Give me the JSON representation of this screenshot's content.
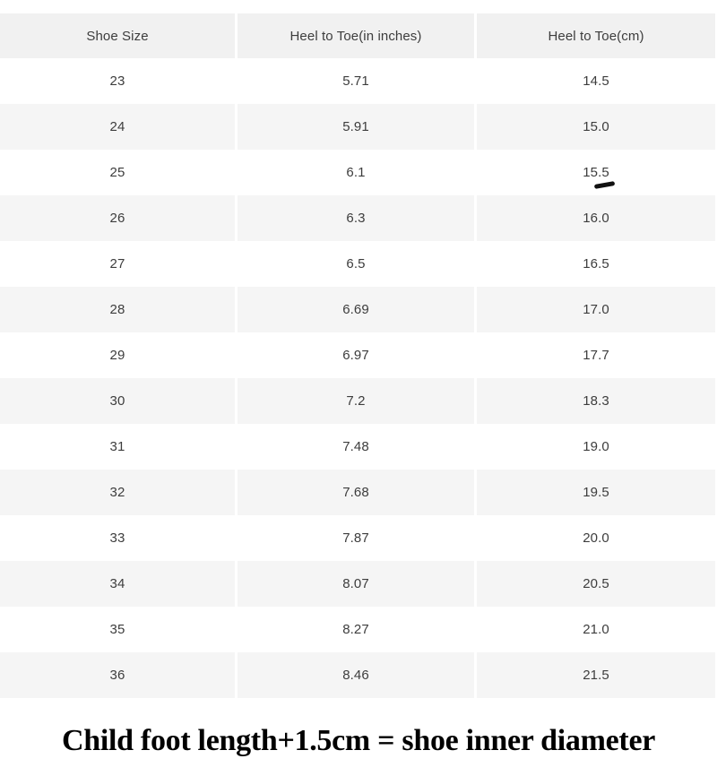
{
  "chart_data": {
    "type": "table",
    "columns": [
      "Shoe Size",
      "Heel to Toe(in inches)",
      "Heel to Toe(cm)"
    ],
    "rows": [
      [
        "23",
        "5.71",
        "14.5"
      ],
      [
        "24",
        "5.91",
        "15.0"
      ],
      [
        "25",
        "6.1",
        "15.5"
      ],
      [
        "26",
        "6.3",
        "16.0"
      ],
      [
        "27",
        "6.5",
        "16.5"
      ],
      [
        "28",
        "6.69",
        "17.0"
      ],
      [
        "29",
        "6.97",
        "17.7"
      ],
      [
        "30",
        "7.2",
        "18.3"
      ],
      [
        "31",
        "7.48",
        "19.0"
      ],
      [
        "32",
        "7.68",
        "19.5"
      ],
      [
        "33",
        "7.87",
        "20.0"
      ],
      [
        "34",
        "8.07",
        "20.5"
      ],
      [
        "35",
        "8.27",
        "21.0"
      ],
      [
        "36",
        "8.46",
        "21.5"
      ]
    ],
    "layout": {
      "header_row": true,
      "striped_rows": "even rows shaded",
      "grid": "off, white gutters between columns"
    },
    "annotation": {
      "description": "small black hand-drawn dash underline beneath the value 15.5",
      "marked_value": "15.5",
      "row_index": 2,
      "col_index": 2
    }
  },
  "caption": "Child foot length+1.5cm = shoe inner diameter",
  "colors": {
    "header_bg": "#f1f1f1",
    "stripe_bg": "#f5f5f5",
    "table_text": "#3d3d3d",
    "caption_text": "#000000",
    "mark_color": "#111111",
    "page_bg": "#ffffff"
  }
}
